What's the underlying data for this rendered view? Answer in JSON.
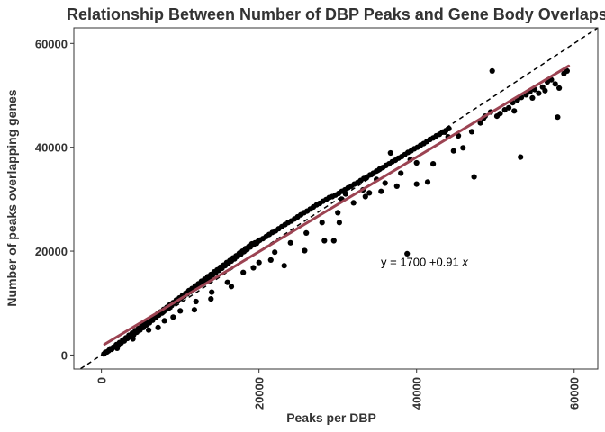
{
  "chart_data": {
    "type": "scatter",
    "title": "Relationship Between Number of DBP Peaks and Gene Body Overlaps",
    "xlabel": "Peaks per DBP",
    "ylabel": "Number of peaks overlapping genes",
    "xlim": [
      -3500,
      63000
    ],
    "ylim": [
      -2700,
      63000
    ],
    "x_ticks": [
      0,
      20000,
      40000,
      60000
    ],
    "y_ticks": [
      0,
      20000,
      40000,
      60000
    ],
    "x_tick_labels": [
      "0",
      "20000",
      "40000",
      "60000"
    ],
    "y_tick_labels": [
      "0",
      "20000",
      "40000",
      "60000"
    ],
    "grid": false,
    "colors": {
      "points": "#000000",
      "fit_line": "#9c4352",
      "identity_line": "#000000",
      "panel_border": "#333333"
    },
    "fit_line": {
      "intercept": 1700,
      "slope": 0.91,
      "x_range": [
        400,
        59300
      ],
      "style": "solid"
    },
    "identity_line": {
      "slope": 1,
      "intercept": 0,
      "style": "dashed"
    },
    "annotation": {
      "text_prefix": "y = 1700 +0.91 ",
      "text_var": "x",
      "x": 41000,
      "y": 18000
    },
    "points": [
      [
        300,
        200
      ],
      [
        500,
        500
      ],
      [
        700,
        600
      ],
      [
        900,
        800
      ],
      [
        1100,
        1200
      ],
      [
        1300,
        1100
      ],
      [
        1500,
        1500
      ],
      [
        1700,
        1600
      ],
      [
        1900,
        2000
      ],
      [
        2100,
        1800
      ],
      [
        2300,
        2400
      ],
      [
        2500,
        2300
      ],
      [
        2700,
        2900
      ],
      [
        2900,
        2700
      ],
      [
        3100,
        3300
      ],
      [
        3300,
        3200
      ],
      [
        3500,
        3800
      ],
      [
        3700,
        3500
      ],
      [
        3900,
        4200
      ],
      [
        4100,
        3900
      ],
      [
        4300,
        4700
      ],
      [
        4500,
        4400
      ],
      [
        4700,
        5100
      ],
      [
        4900,
        4800
      ],
      [
        5100,
        5600
      ],
      [
        5300,
        5300
      ],
      [
        5500,
        6000
      ],
      [
        5700,
        5800
      ],
      [
        5900,
        6500
      ],
      [
        6100,
        6200
      ],
      [
        6300,
        7000
      ],
      [
        6500,
        6700
      ],
      [
        6700,
        7400
      ],
      [
        6900,
        7200
      ],
      [
        7100,
        7900
      ],
      [
        7300,
        7700
      ],
      [
        7500,
        8300
      ],
      [
        7700,
        8100
      ],
      [
        7900,
        8800
      ],
      [
        8100,
        8600
      ],
      [
        8300,
        9200
      ],
      [
        8500,
        9000
      ],
      [
        8700,
        9700
      ],
      [
        8900,
        9500
      ],
      [
        9100,
        10100
      ],
      [
        9300,
        10000
      ],
      [
        9500,
        10600
      ],
      [
        9700,
        10400
      ],
      [
        9900,
        11000
      ],
      [
        10100,
        10900
      ],
      [
        10300,
        11500
      ],
      [
        10500,
        11300
      ],
      [
        10700,
        11900
      ],
      [
        10900,
        11800
      ],
      [
        11100,
        12400
      ],
      [
        11300,
        12200
      ],
      [
        11500,
        12800
      ],
      [
        11700,
        12700
      ],
      [
        11900,
        13300
      ],
      [
        12100,
        13100
      ],
      [
        12300,
        13700
      ],
      [
        12500,
        13600
      ],
      [
        12700,
        14200
      ],
      [
        12900,
        14000
      ],
      [
        13100,
        14600
      ],
      [
        13300,
        14500
      ],
      [
        13500,
        15100
      ],
      [
        13700,
        14900
      ],
      [
        13900,
        15500
      ],
      [
        14100,
        15400
      ],
      [
        14300,
        16000
      ],
      [
        14500,
        15800
      ],
      [
        14700,
        16400
      ],
      [
        14900,
        16300
      ],
      [
        15100,
        16900
      ],
      [
        15300,
        16700
      ],
      [
        15500,
        17300
      ],
      [
        15700,
        17200
      ],
      [
        15900,
        17800
      ],
      [
        16100,
        17600
      ],
      [
        16300,
        18200
      ],
      [
        16500,
        18100
      ],
      [
        16700,
        18700
      ],
      [
        16900,
        18500
      ],
      [
        17100,
        19100
      ],
      [
        17300,
        19000
      ],
      [
        17500,
        19600
      ],
      [
        17700,
        19400
      ],
      [
        17900,
        20000
      ],
      [
        18100,
        19900
      ],
      [
        18300,
        20500
      ],
      [
        18500,
        20300
      ],
      [
        18700,
        20900
      ],
      [
        18900,
        20800
      ],
      [
        19100,
        21400
      ],
      [
        19300,
        21200
      ],
      [
        19500,
        21600
      ],
      [
        19700,
        21500
      ],
      [
        19900,
        21900
      ],
      [
        20100,
        22100
      ],
      [
        20500,
        22400
      ],
      [
        20900,
        22800
      ],
      [
        21300,
        23200
      ],
      [
        21700,
        23600
      ],
      [
        22100,
        23900
      ],
      [
        22500,
        24300
      ],
      [
        22900,
        24700
      ],
      [
        23300,
        25100
      ],
      [
        23700,
        25500
      ],
      [
        24100,
        25800
      ],
      [
        24500,
        26200
      ],
      [
        24900,
        26600
      ],
      [
        25300,
        27000
      ],
      [
        25700,
        27400
      ],
      [
        26100,
        27700
      ],
      [
        26500,
        28100
      ],
      [
        26900,
        28500
      ],
      [
        27300,
        28900
      ],
      [
        27700,
        29200
      ],
      [
        28100,
        29600
      ],
      [
        28500,
        29900
      ],
      [
        28900,
        30300
      ],
      [
        29300,
        30500
      ],
      [
        29700,
        30800
      ],
      [
        30100,
        31100
      ],
      [
        30500,
        31500
      ],
      [
        30900,
        31800
      ],
      [
        31300,
        32200
      ],
      [
        31700,
        32500
      ],
      [
        32100,
        32900
      ],
      [
        32500,
        33200
      ],
      [
        32900,
        33600
      ],
      [
        33300,
        34000
      ],
      [
        33700,
        34300
      ],
      [
        34100,
        34700
      ],
      [
        34500,
        35000
      ],
      [
        34900,
        35400
      ],
      [
        35300,
        35800
      ],
      [
        35700,
        36100
      ],
      [
        36100,
        36500
      ],
      [
        36500,
        36800
      ],
      [
        36900,
        37200
      ],
      [
        37300,
        37500
      ],
      [
        37700,
        37900
      ],
      [
        38100,
        38200
      ],
      [
        38500,
        38600
      ],
      [
        38900,
        39000
      ],
      [
        39300,
        39300
      ],
      [
        39700,
        39700
      ],
      [
        40100,
        40000
      ],
      [
        40500,
        40400
      ],
      [
        40900,
        40700
      ],
      [
        41300,
        41100
      ],
      [
        41700,
        41500
      ],
      [
        42100,
        41800
      ],
      [
        42500,
        42200
      ],
      [
        42900,
        42500
      ],
      [
        43300,
        42900
      ],
      [
        43700,
        43200
      ],
      [
        44100,
        43600
      ],
      [
        2000,
        1300
      ],
      [
        4000,
        3100
      ],
      [
        6000,
        4800
      ],
      [
        8000,
        6600
      ],
      [
        10000,
        8500
      ],
      [
        12000,
        10300
      ],
      [
        14000,
        12100
      ],
      [
        16000,
        14000
      ],
      [
        18000,
        15900
      ],
      [
        20000,
        17800
      ],
      [
        22000,
        19800
      ],
      [
        24000,
        21600
      ],
      [
        26000,
        23500
      ],
      [
        28000,
        25500
      ],
      [
        30000,
        27400
      ],
      [
        32000,
        29300
      ],
      [
        34000,
        31200
      ],
      [
        36000,
        33100
      ],
      [
        38000,
        35000
      ],
      [
        40000,
        37000
      ],
      [
        7200,
        5300
      ],
      [
        9100,
        7300
      ],
      [
        11800,
        8700
      ],
      [
        13900,
        10800
      ],
      [
        16500,
        13200
      ],
      [
        19300,
        16800
      ],
      [
        21500,
        18300
      ],
      [
        23200,
        17200
      ],
      [
        25800,
        20100
      ],
      [
        28300,
        22000
      ],
      [
        29500,
        22000
      ],
      [
        30200,
        25500
      ],
      [
        30500,
        30000
      ],
      [
        31000,
        31000
      ],
      [
        33500,
        30500
      ],
      [
        35500,
        31500
      ],
      [
        37500,
        32500
      ],
      [
        40000,
        32900
      ],
      [
        41400,
        33300
      ],
      [
        42100,
        36800
      ],
      [
        44000,
        42000
      ],
      [
        45300,
        42200
      ],
      [
        47000,
        43000
      ],
      [
        48100,
        44700
      ],
      [
        48700,
        46000
      ],
      [
        49400,
        46800
      ],
      [
        50200,
        46000
      ],
      [
        50600,
        46500
      ],
      [
        51200,
        47200
      ],
      [
        51700,
        47600
      ],
      [
        52200,
        48600
      ],
      [
        52800,
        49100
      ],
      [
        53300,
        49600
      ],
      [
        53900,
        50100
      ],
      [
        54400,
        50700
      ],
      [
        55000,
        51100
      ],
      [
        55500,
        50400
      ],
      [
        56000,
        51600
      ],
      [
        56600,
        52600
      ],
      [
        57100,
        53000
      ],
      [
        57600,
        52200
      ],
      [
        58100,
        51400
      ],
      [
        58700,
        54200
      ],
      [
        59100,
        54700
      ],
      [
        49600,
        54700
      ],
      [
        53200,
        38100
      ],
      [
        57900,
        45800
      ],
      [
        47300,
        34300
      ],
      [
        44700,
        39300
      ],
      [
        45900,
        39900
      ],
      [
        48500,
        45600
      ],
      [
        52400,
        47000
      ],
      [
        54700,
        49500
      ],
      [
        56300,
        50900
      ],
      [
        43600,
        42900
      ],
      [
        39200,
        37600
      ],
      [
        36700,
        38900
      ],
      [
        34900,
        33800
      ],
      [
        33200,
        31800
      ],
      [
        38800,
        19500
      ]
    ]
  }
}
